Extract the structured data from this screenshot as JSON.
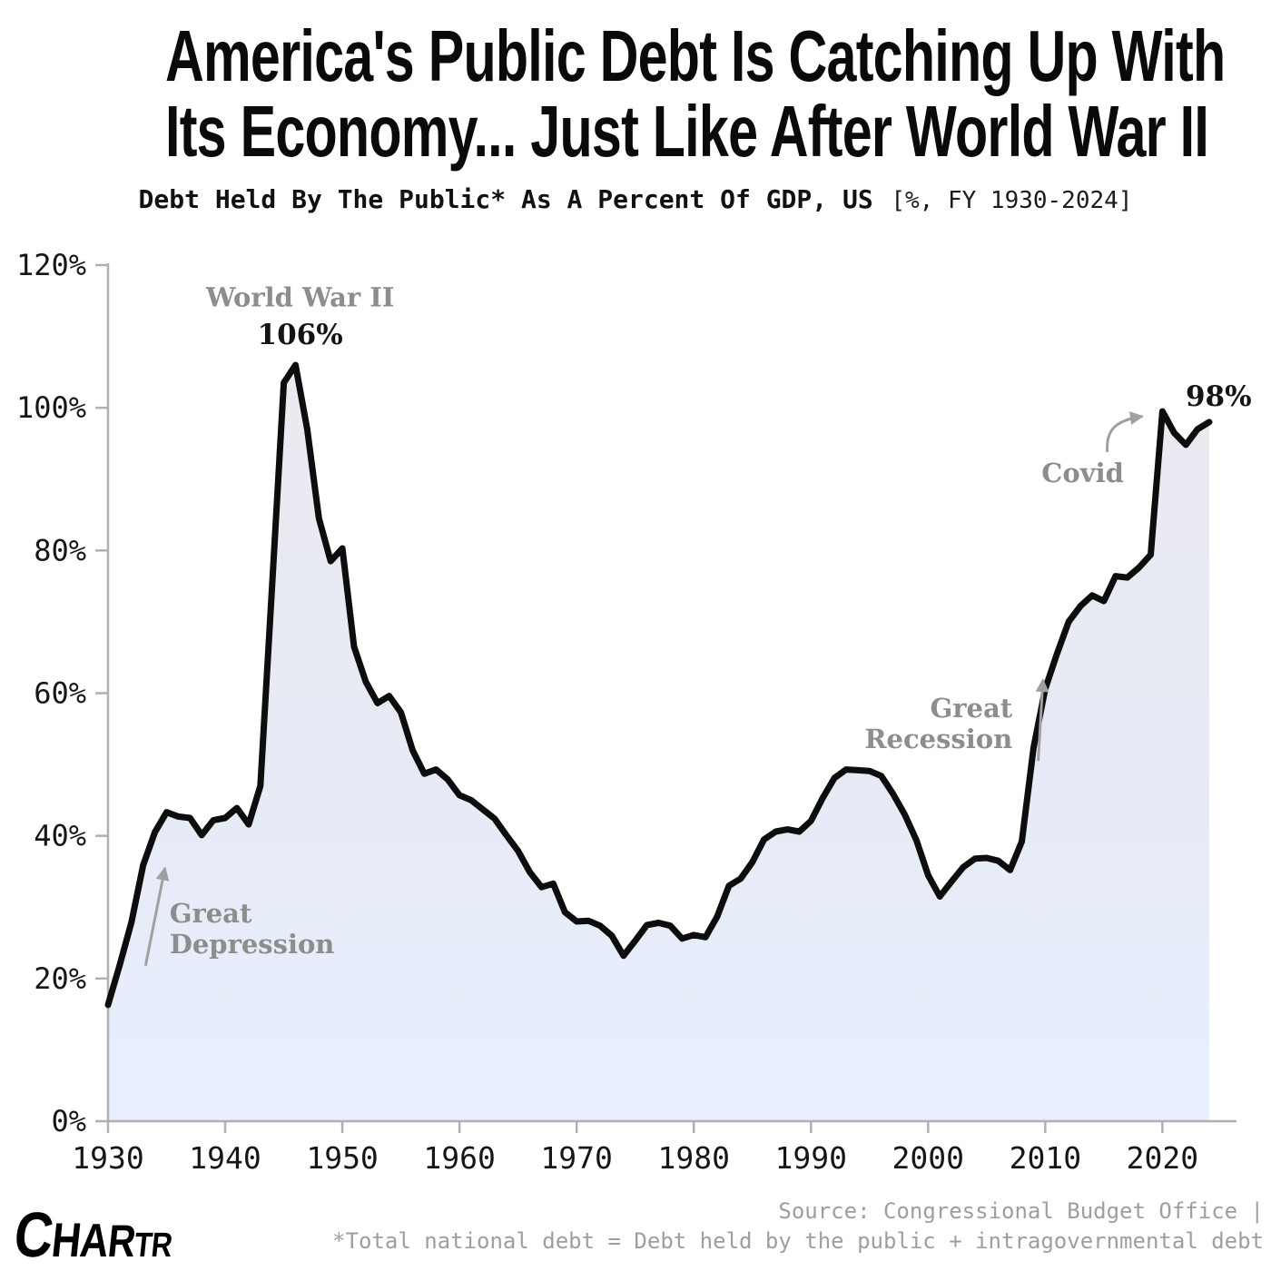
{
  "header": {
    "title_line1": "America's Public Debt Is Catching Up With",
    "title_line2": "Its Economy... Just Like After World War II",
    "subtitle_main": "Debt Held By The Public* As A Percent Of GDP, US",
    "subtitle_note": "[%, FY 1930-2024]"
  },
  "chart_data": {
    "type": "area",
    "title": "Debt Held By The Public As A Percent Of GDP, US, FY 1930-2024",
    "xlabel": "",
    "ylabel": "",
    "xlim": [
      1930,
      2024
    ],
    "ylim": [
      0,
      120
    ],
    "x_ticks": [
      1930,
      1940,
      1950,
      1960,
      1970,
      1980,
      1990,
      2000,
      2010,
      2020
    ],
    "y_ticks": [
      0,
      20,
      40,
      60,
      80,
      100,
      120
    ],
    "y_tick_suffix": "%",
    "grid": false,
    "legend": "none",
    "x": [
      1930,
      1931,
      1932,
      1933,
      1934,
      1935,
      1936,
      1937,
      1938,
      1939,
      1940,
      1941,
      1942,
      1943,
      1944,
      1945,
      1946,
      1947,
      1948,
      1949,
      1950,
      1951,
      1952,
      1953,
      1954,
      1955,
      1956,
      1957,
      1958,
      1959,
      1960,
      1961,
      1962,
      1963,
      1964,
      1965,
      1966,
      1967,
      1968,
      1969,
      1970,
      1971,
      1972,
      1973,
      1974,
      1975,
      1976,
      1977,
      1978,
      1979,
      1980,
      1981,
      1982,
      1983,
      1984,
      1985,
      1986,
      1987,
      1988,
      1989,
      1990,
      1991,
      1992,
      1993,
      1994,
      1995,
      1996,
      1997,
      1998,
      1999,
      2000,
      2001,
      2002,
      2003,
      2004,
      2005,
      2006,
      2007,
      2008,
      2009,
      2010,
      2011,
      2012,
      2013,
      2014,
      2015,
      2016,
      2017,
      2018,
      2019,
      2020,
      2021,
      2022,
      2023,
      2024
    ],
    "values": [
      16.3,
      21.9,
      27.9,
      35.9,
      40.5,
      43.3,
      42.7,
      42.5,
      40.1,
      42.2,
      42.5,
      43.9,
      41.6,
      47.0,
      75.0,
      103.5,
      106.0,
      97.0,
      84.5,
      78.5,
      80.3,
      66.5,
      61.6,
      58.6,
      59.6,
      57.3,
      52.0,
      48.7,
      49.3,
      47.9,
      45.7,
      45.0,
      43.7,
      42.4,
      40.1,
      37.9,
      34.9,
      32.8,
      33.3,
      29.3,
      28.0,
      28.1,
      27.4,
      26.0,
      23.2,
      25.3,
      27.5,
      27.8,
      27.4,
      25.6,
      26.1,
      25.8,
      28.7,
      33.0,
      34.0,
      36.3,
      39.5,
      40.6,
      40.9,
      40.6,
      42.1,
      45.3,
      48.1,
      49.3,
      49.2,
      49.1,
      48.4,
      45.9,
      43.0,
      39.4,
      34.5,
      31.5,
      33.6,
      35.6,
      36.8,
      36.9,
      36.5,
      35.2,
      39.2,
      52.3,
      60.6,
      65.5,
      70.0,
      72.2,
      73.7,
      72.9,
      76.4,
      76.2,
      77.6,
      79.4,
      99.5,
      96.5,
      94.8,
      97.0,
      98.0
    ],
    "annotations": [
      {
        "id": "wwii-label",
        "lines": [
          "World War II"
        ],
        "year": 1946.4,
        "pct": 114.2,
        "anchor": "middle",
        "style": "event"
      },
      {
        "id": "wwii-peak-value",
        "lines": [
          "106%"
        ],
        "year": 1946.4,
        "pct": 108.9,
        "anchor": "middle",
        "style": "value"
      },
      {
        "id": "covid-label",
        "lines": [
          "Covid"
        ],
        "year": 2013.2,
        "pct": 89.6,
        "anchor": "middle",
        "style": "event"
      },
      {
        "id": "end-value",
        "lines": [
          "98%"
        ],
        "year": 2024.8,
        "pct": 100.3,
        "anchor": "middle",
        "style": "value"
      },
      {
        "id": "great-recession-label",
        "lines": [
          "Great",
          "Recession"
        ],
        "year": 2007.2,
        "pct": 56.6,
        "anchor": "end",
        "style": "event"
      },
      {
        "id": "great-depression-label",
        "lines": [
          "Great",
          "Depression"
        ],
        "year": 1935.25,
        "pct": 27.9,
        "anchor": "start",
        "style": "event"
      }
    ],
    "arrows": [
      {
        "id": "great-depression-arrow",
        "from_year": 1933.2,
        "from_pct": 21.8,
        "to_year": 1934.86,
        "to_pct": 35.5,
        "curved": false
      },
      {
        "id": "great-recession-arrow",
        "from_year": 2009.4,
        "from_pct": 50.5,
        "to_year": 2009.8,
        "to_pct": 61.9,
        "curved": false
      },
      {
        "id": "covid-arrow",
        "from_year": 2015.3,
        "from_pct": 93.8,
        "to_year": 2018.3,
        "to_pct": 98.8,
        "curved": true
      }
    ]
  },
  "footer": {
    "logo_text": "CHARTR",
    "source_line1": "Source: Congressional Budget Office |",
    "source_line2": "*Total national debt = Debt held by the public + intragovernmental debt"
  },
  "colors": {
    "line": "#0d0d0d",
    "fill_top": "#ebeaef",
    "fill_mid": "#e7eaf5",
    "fill_bottom": "#e7effd",
    "axis": "#b0b0b0",
    "tick_label": "#161616",
    "annotation_gray": "#8d8d8d",
    "annotation_black": "#141414",
    "arrow": "#a0a0a0",
    "source_text": "#9e9e9e"
  }
}
